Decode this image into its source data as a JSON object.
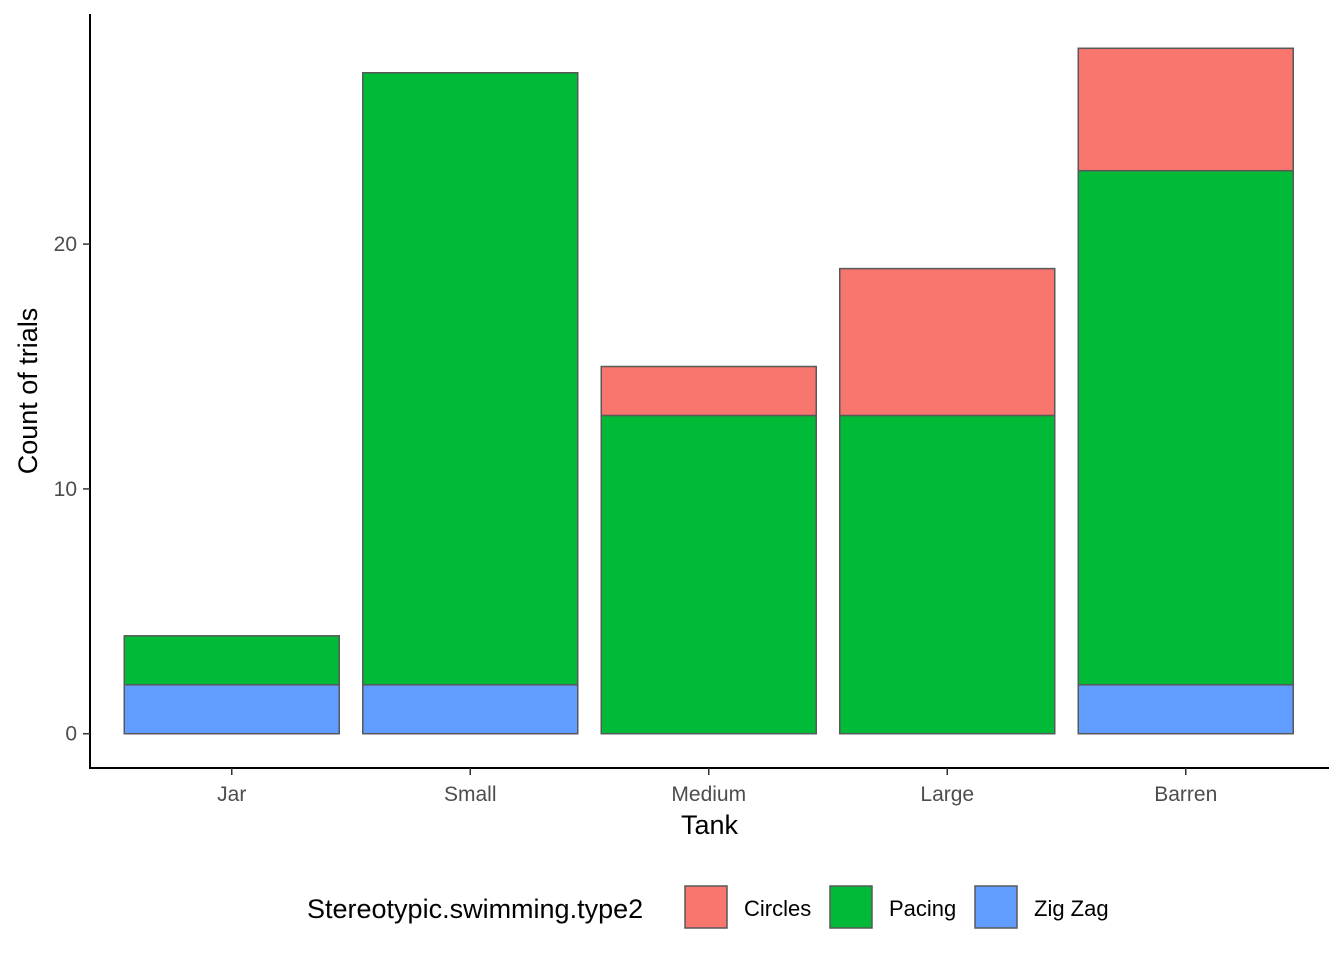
{
  "chart_data": {
    "type": "bar",
    "stacked": true,
    "categories": [
      "Jar",
      "Small",
      "Medium",
      "Large",
      "Barren"
    ],
    "series": [
      {
        "name": "Zig Zag",
        "color": "#619CFF",
        "values": [
          2,
          2,
          0,
          0,
          2
        ]
      },
      {
        "name": "Pacing",
        "color": "#00BA38",
        "values": [
          2,
          25,
          13,
          13,
          21
        ]
      },
      {
        "name": "Circles",
        "color": "#F8766D",
        "values": [
          0,
          0,
          2,
          6,
          5
        ]
      }
    ],
    "xlabel": "Tank",
    "ylabel": "Count of trials",
    "ylim": [
      -1.4,
      29.4
    ],
    "yticks": [
      0,
      10,
      20
    ],
    "grid": false,
    "bar_outline_color": "#595959",
    "legend": {
      "title": "Stereotypic.swimming.type2",
      "position": "bottom",
      "items": [
        "Circles",
        "Pacing",
        "Zig Zag"
      ]
    }
  }
}
